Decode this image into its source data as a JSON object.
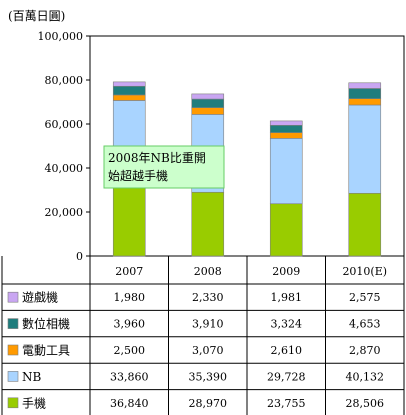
{
  "chart_data": {
    "type": "bar",
    "stacked": true,
    "unit_label": "(百萬日圓)",
    "ylim": [
      0,
      100000
    ],
    "yticks": [
      "0",
      "20,000",
      "40,000",
      "60,000",
      "80,000",
      "100,000"
    ],
    "ytick_values": [
      0,
      20000,
      40000,
      60000,
      80000,
      100000
    ],
    "grid": false,
    "categories": [
      "2007",
      "2008",
      "2009",
      "2010(E)"
    ],
    "series": [
      {
        "name": "遊戲機",
        "color": "#c9a6f2",
        "values": [
          1980,
          2330,
          1981,
          2575
        ],
        "labels": [
          "1,980",
          "2,330",
          "1,981",
          "2,575"
        ]
      },
      {
        "name": "數位相機",
        "color": "#1f7d7d",
        "values": [
          3960,
          3910,
          3324,
          4653
        ],
        "labels": [
          "3,960",
          "3,910",
          "3,324",
          "4,653"
        ]
      },
      {
        "name": "電動工具",
        "color": "#ff9a00",
        "values": [
          2500,
          3070,
          2610,
          2870
        ],
        "labels": [
          "2,500",
          "3,070",
          "2,610",
          "2,870"
        ]
      },
      {
        "name": "NB",
        "color": "#a9d4ff",
        "values": [
          33860,
          35390,
          29728,
          40132
        ],
        "labels": [
          "33,860",
          "35,390",
          "29,728",
          "40,132"
        ]
      },
      {
        "name": "手機",
        "color": "#99cc00",
        "values": [
          36840,
          28970,
          23755,
          28506
        ],
        "labels": [
          "36,840",
          "28,970",
          "23,755",
          "28,506"
        ]
      }
    ],
    "annotation": {
      "lines": [
        "2008年NB比重開",
        "始超越手機"
      ],
      "fill": "#ccffcc",
      "border": "#66cc66"
    }
  }
}
